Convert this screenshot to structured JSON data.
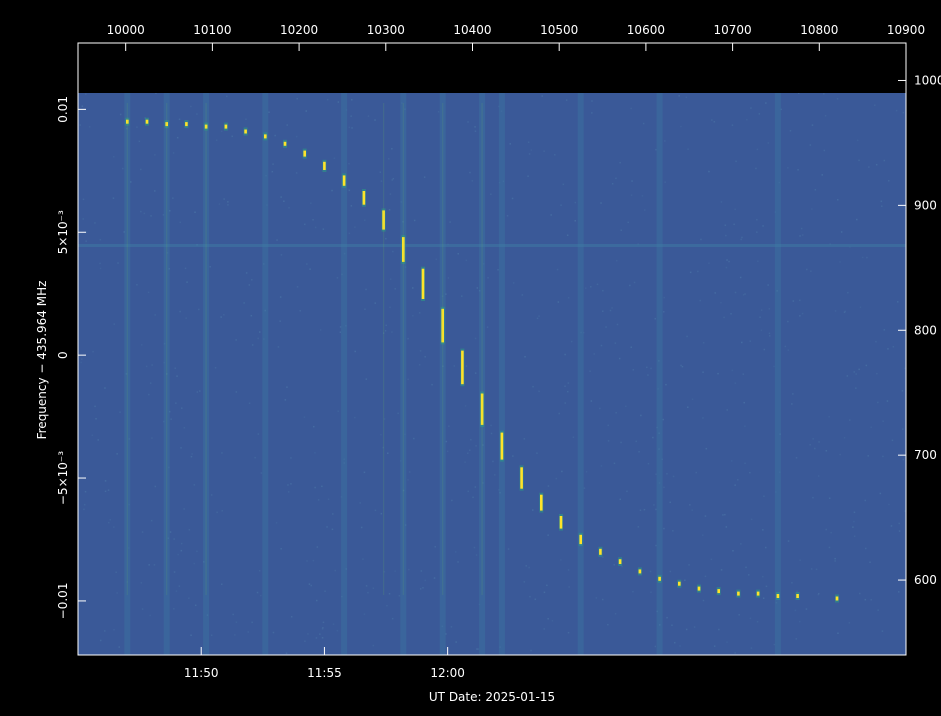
{
  "chart_data": {
    "type": "heatmap",
    "title": "",
    "xlabel": "UT Date: 2025-01-15",
    "ylabel": "Frequency − 435.964 MHz",
    "x_bottom": {
      "unit": "minutes since 11:45 UT",
      "range": [
        0,
        33.6
      ],
      "ticks": [
        {
          "value": 5,
          "label": "11:50"
        },
        {
          "value": 10,
          "label": "11:55"
        },
        {
          "value": 15,
          "label": "12:00"
        }
      ]
    },
    "x_top": {
      "range": [
        9945,
        10900
      ],
      "ticks": [
        {
          "value": 10000,
          "label": "10000"
        },
        {
          "value": 10100,
          "label": "10100"
        },
        {
          "value": 10200,
          "label": "10200"
        },
        {
          "value": 10300,
          "label": "10300"
        },
        {
          "value": 10400,
          "label": "10400"
        },
        {
          "value": 10500,
          "label": "10500"
        },
        {
          "value": 10600,
          "label": "10600"
        },
        {
          "value": 10700,
          "label": "10700"
        },
        {
          "value": 10800,
          "label": "10800"
        },
        {
          "value": 10900,
          "label": "10900"
        }
      ]
    },
    "y_left": {
      "range": [
        -0.0122,
        0.0127
      ],
      "ticks": [
        {
          "value": 0.01,
          "label": "0.01"
        },
        {
          "value": 0.005,
          "label": "5×10⁻³"
        },
        {
          "value": 0,
          "label": "0"
        },
        {
          "value": -0.005,
          "label": "−5×10⁻³"
        },
        {
          "value": -0.01,
          "label": "−0.01"
        }
      ]
    },
    "y_right": {
      "range": [
        540,
        1030
      ],
      "ticks": [
        {
          "value": 1000,
          "label": "1000"
        },
        {
          "value": 900,
          "label": "900"
        },
        {
          "value": 800,
          "label": "800"
        },
        {
          "value": 700,
          "label": "700"
        },
        {
          "value": 600,
          "label": "600"
        }
      ]
    },
    "signal_trace": [
      {
        "t": 2.0,
        "f": 0.0095
      },
      {
        "t": 2.8,
        "f": 0.0095
      },
      {
        "t": 3.6,
        "f": 0.0094
      },
      {
        "t": 4.4,
        "f": 0.0094
      },
      {
        "t": 5.2,
        "f": 0.0093
      },
      {
        "t": 6.0,
        "f": 0.0093
      },
      {
        "t": 6.8,
        "f": 0.0091
      },
      {
        "t": 7.6,
        "f": 0.0089
      },
      {
        "t": 8.4,
        "f": 0.0086
      },
      {
        "t": 9.2,
        "f": 0.0082
      },
      {
        "t": 10.0,
        "f": 0.0077
      },
      {
        "t": 10.8,
        "f": 0.0071
      },
      {
        "t": 11.6,
        "f": 0.0064
      },
      {
        "t": 12.4,
        "f": 0.0055
      },
      {
        "t": 13.2,
        "f": 0.0043
      },
      {
        "t": 14.0,
        "f": 0.0029
      },
      {
        "t": 14.8,
        "f": 0.0012
      },
      {
        "t": 15.6,
        "f": -0.0005
      },
      {
        "t": 16.4,
        "f": -0.0022
      },
      {
        "t": 17.2,
        "f": -0.0037
      },
      {
        "t": 18.0,
        "f": -0.005
      },
      {
        "t": 18.8,
        "f": -0.006
      },
      {
        "t": 19.6,
        "f": -0.0068
      },
      {
        "t": 20.4,
        "f": -0.0075
      },
      {
        "t": 21.2,
        "f": -0.008
      },
      {
        "t": 22.0,
        "f": -0.0084
      },
      {
        "t": 22.8,
        "f": -0.0088
      },
      {
        "t": 23.6,
        "f": -0.0091
      },
      {
        "t": 24.4,
        "f": -0.0093
      },
      {
        "t": 25.2,
        "f": -0.0095
      },
      {
        "t": 26.0,
        "f": -0.0096
      },
      {
        "t": 26.8,
        "f": -0.0097
      },
      {
        "t": 27.6,
        "f": -0.0097
      },
      {
        "t": 28.4,
        "f": -0.0098
      },
      {
        "t": 29.2,
        "f": -0.0098
      },
      {
        "t": 30.8,
        "f": -0.0099
      }
    ],
    "bright_columns_t": [
      2.0,
      3.6,
      5.2,
      12.4,
      13.2,
      14.8,
      16.4
    ],
    "faint_columns_t": [
      2.0,
      3.6,
      5.2,
      7.6,
      10.8,
      13.2,
      14.8,
      16.4,
      17.2,
      20.4,
      23.6,
      28.4
    ],
    "colors": {
      "background": "#3a5998",
      "noise_light": "#4a74a6",
      "band": "#3d7ba3",
      "signal_bright": "#ffe32a",
      "signal_mid": "#7fd34e",
      "signal_dim": "#2aa382",
      "mask": "#000000"
    }
  }
}
